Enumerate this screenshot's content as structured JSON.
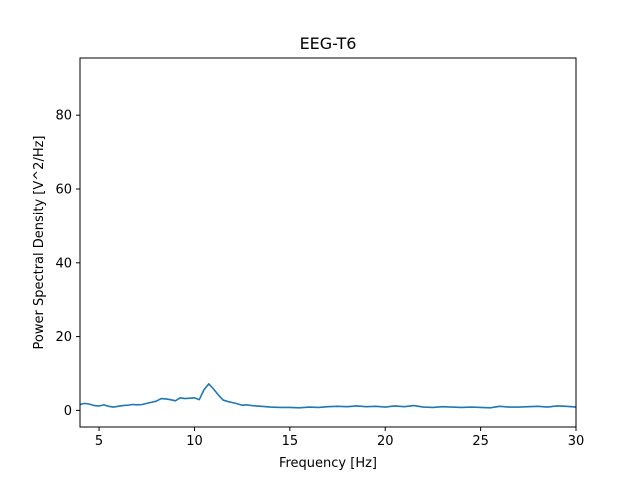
{
  "chart_data": {
    "type": "line",
    "title": "EEG-T6",
    "xlabel": "Frequency [Hz]",
    "ylabel": "Power Spectral Density [V^2/Hz]",
    "xlim": [
      4,
      30
    ],
    "ylim": [
      -4.5,
      95.5
    ],
    "xticks": [
      5,
      10,
      15,
      20,
      25,
      30
    ],
    "yticks": [
      0,
      20,
      40,
      60,
      80
    ],
    "grid": false,
    "line_color": "#1f77b4",
    "series": [
      {
        "x": [
          4.0,
          4.25,
          4.5,
          4.75,
          5.0,
          5.25,
          5.5,
          5.75,
          6.0,
          6.25,
          6.5,
          6.75,
          7.0,
          7.25,
          7.5,
          7.75,
          8.0,
          8.25,
          8.5,
          8.75,
          9.0,
          9.25,
          9.5,
          9.75,
          10.0,
          10.25,
          10.5,
          10.75,
          11.0,
          11.25,
          11.5,
          11.75,
          12.0,
          12.25,
          12.5,
          12.75,
          13.0,
          13.5,
          14.0,
          14.5,
          15.0,
          15.5,
          16.0,
          16.5,
          17.0,
          17.5,
          18.0,
          18.5,
          19.0,
          19.5,
          20.0,
          20.5,
          21.0,
          21.5,
          22.0,
          22.5,
          23.0,
          23.5,
          24.0,
          24.5,
          25.0,
          25.5,
          26.0,
          26.5,
          27.0,
          27.5,
          28.0,
          28.5,
          29.0,
          29.5,
          30.0
        ],
        "y": [
          1.6,
          1.9,
          1.7,
          1.3,
          1.2,
          1.5,
          1.1,
          0.9,
          1.1,
          1.3,
          1.4,
          1.6,
          1.5,
          1.6,
          1.9,
          2.2,
          2.5,
          3.2,
          3.1,
          2.9,
          2.6,
          3.4,
          3.2,
          3.3,
          3.4,
          2.9,
          5.6,
          7.2,
          5.8,
          4.2,
          2.8,
          2.4,
          2.1,
          1.8,
          1.4,
          1.5,
          1.3,
          1.1,
          0.9,
          0.8,
          0.8,
          0.7,
          0.9,
          0.8,
          1.0,
          1.1,
          1.0,
          1.2,
          1.0,
          1.1,
          0.9,
          1.2,
          1.0,
          1.3,
          0.9,
          0.8,
          1.0,
          0.9,
          0.8,
          0.9,
          0.8,
          0.7,
          1.1,
          0.9,
          0.9,
          1.0,
          1.1,
          0.9,
          1.2,
          1.1,
          0.9
        ]
      }
    ]
  }
}
